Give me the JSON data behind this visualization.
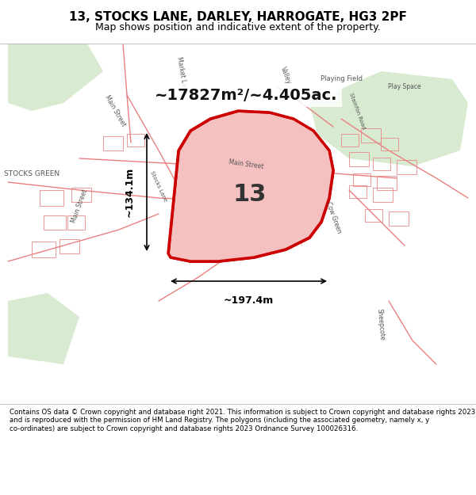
{
  "title_line1": "13, STOCKS LANE, DARLEY, HARROGATE, HG3 2PF",
  "title_line2": "Map shows position and indicative extent of the property.",
  "area_text": "~17827m²/~4.405ac.",
  "label_number": "13",
  "dim_width": "~197.4m",
  "dim_height": "~134.1m",
  "footer_text": "Contains OS data © Crown copyright and database right 2021. This information is subject to Crown copyright and database rights 2023 and is reproduced with the permission of HM Land Registry. The polygons (including the associated geometry, namely x, y co-ordinates) are subject to Crown copyright and database rights 2023 Ordnance Survey 100026316.",
  "bg_color": "#f5f0ed",
  "map_bg": "#f5f0ed",
  "highlight_color": "#cc0000",
  "highlight_fill": "#f5c0c0",
  "road_color": "#e88080",
  "green_area": "#d8ead0",
  "title_bg": "#ffffff",
  "footer_bg": "#ffffff"
}
